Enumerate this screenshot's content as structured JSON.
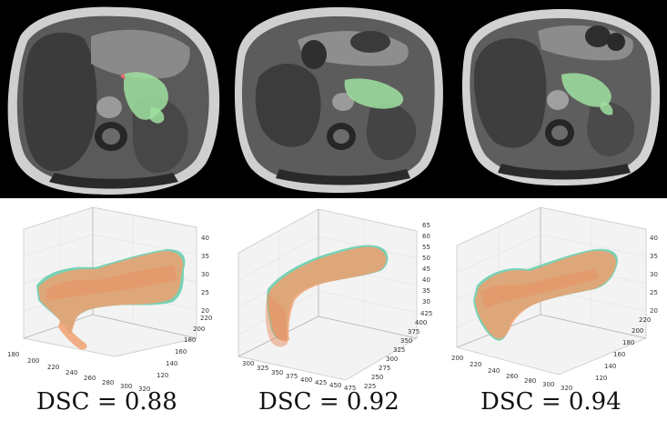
{
  "panels": [
    {
      "caption": "DSC = 0.88",
      "x_ticks": [
        "180",
        "200",
        "220",
        "240",
        "260",
        "280",
        "300",
        "320"
      ],
      "y_ticks": [
        "120",
        "140",
        "160",
        "180",
        "200",
        "220"
      ],
      "z_ticks": [
        "20",
        "25",
        "30",
        "35",
        "40"
      ]
    },
    {
      "caption": "DSC = 0.92",
      "x_ticks": [
        "300",
        "325",
        "350",
        "375",
        "400",
        "425",
        "450",
        "475"
      ],
      "y_ticks": [
        "225",
        "250",
        "275",
        "300",
        "325",
        "350",
        "375",
        "400",
        "425"
      ],
      "z_ticks": [
        "30",
        "35",
        "40",
        "45",
        "50",
        "55",
        "60",
        "65"
      ]
    },
    {
      "caption": "DSC = 0.94",
      "x_ticks": [
        "200",
        "220",
        "240",
        "260",
        "280",
        "300",
        "320"
      ],
      "y_ticks": [
        "120",
        "140",
        "160",
        "180",
        "200",
        "220"
      ],
      "z_ticks": [
        "20",
        "25",
        "30",
        "35",
        "40"
      ]
    }
  ],
  "colors": {
    "ground_truth": "#4fc7a0",
    "prediction": "#f0a070",
    "segmentation_overlay": "#9fe0a0"
  }
}
